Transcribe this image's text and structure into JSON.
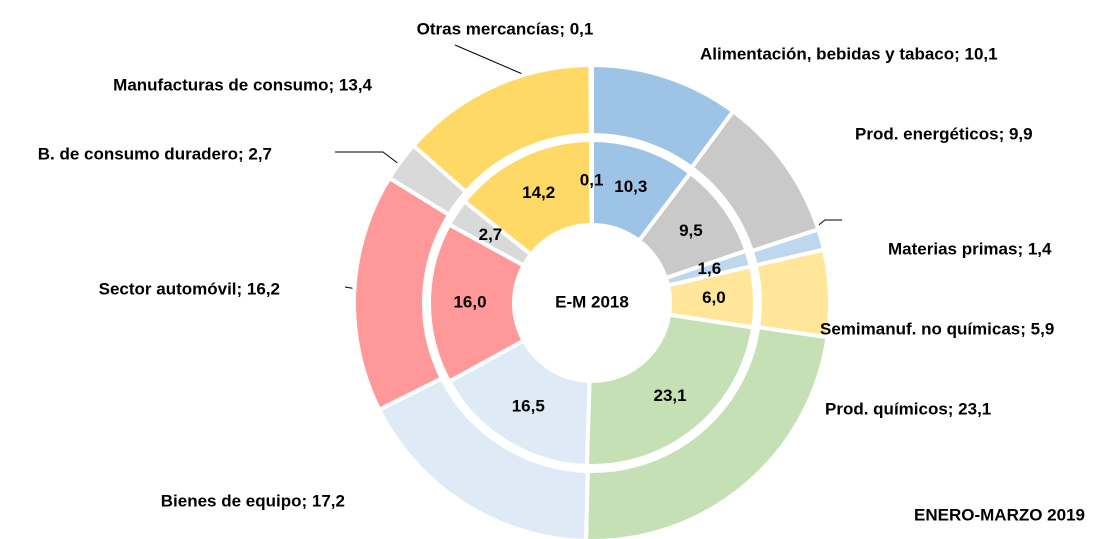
{
  "chart_data": {
    "type": "donut",
    "center_label": "E-M 2018",
    "subtitle": "ENERO-MARZO 2019",
    "categories": [
      "Alimentación, bebidas y tabaco",
      "Prod. energéticos",
      "Materias primas",
      "Semimanuf. no químicas",
      "Prod. químicos",
      "Bienes de equipo",
      "Sector automóvil",
      "B. de consumo duradero",
      "Manufacturas de consumo",
      "Otras mercancías"
    ],
    "colors": [
      "#9dc3e6",
      "#c9c9c9",
      "#bdd7ee",
      "#ffe699",
      "#c5e0b4",
      "#deebf7",
      "#ff9999",
      "#d9d9d9",
      "#ffd966",
      "#f2f2f2"
    ],
    "series": [
      {
        "name": "ENERO-MARZO 2019",
        "values": [
          10.1,
          9.9,
          1.4,
          5.9,
          23.1,
          17.2,
          16.2,
          2.7,
          13.4,
          0.1
        ],
        "value_labels": [
          "Alimentación, bebidas y tabaco; 10,1",
          "Prod. energéticos; 9,9",
          "Materias primas; 1,4",
          "Semimanuf. no químicas; 5,9",
          "Prod. químicos; 23,1",
          "Bienes de equipo; 17,2",
          "Sector automóvil; 16,2",
          "B. de consumo duradero; 2,7",
          "Manufacturas de consumo; 13,4",
          "Otras mercancías; 0,1"
        ]
      },
      {
        "name": "E-M 2018",
        "values": [
          10.3,
          9.5,
          1.6,
          6.0,
          23.1,
          16.5,
          16.0,
          2.7,
          14.2,
          0.1
        ],
        "value_labels": [
          "10,3",
          "9,5",
          "1,6",
          "6,0",
          "23,1",
          "16,5",
          "16,0",
          "2,7",
          "14,2",
          "0,1"
        ]
      }
    ]
  }
}
